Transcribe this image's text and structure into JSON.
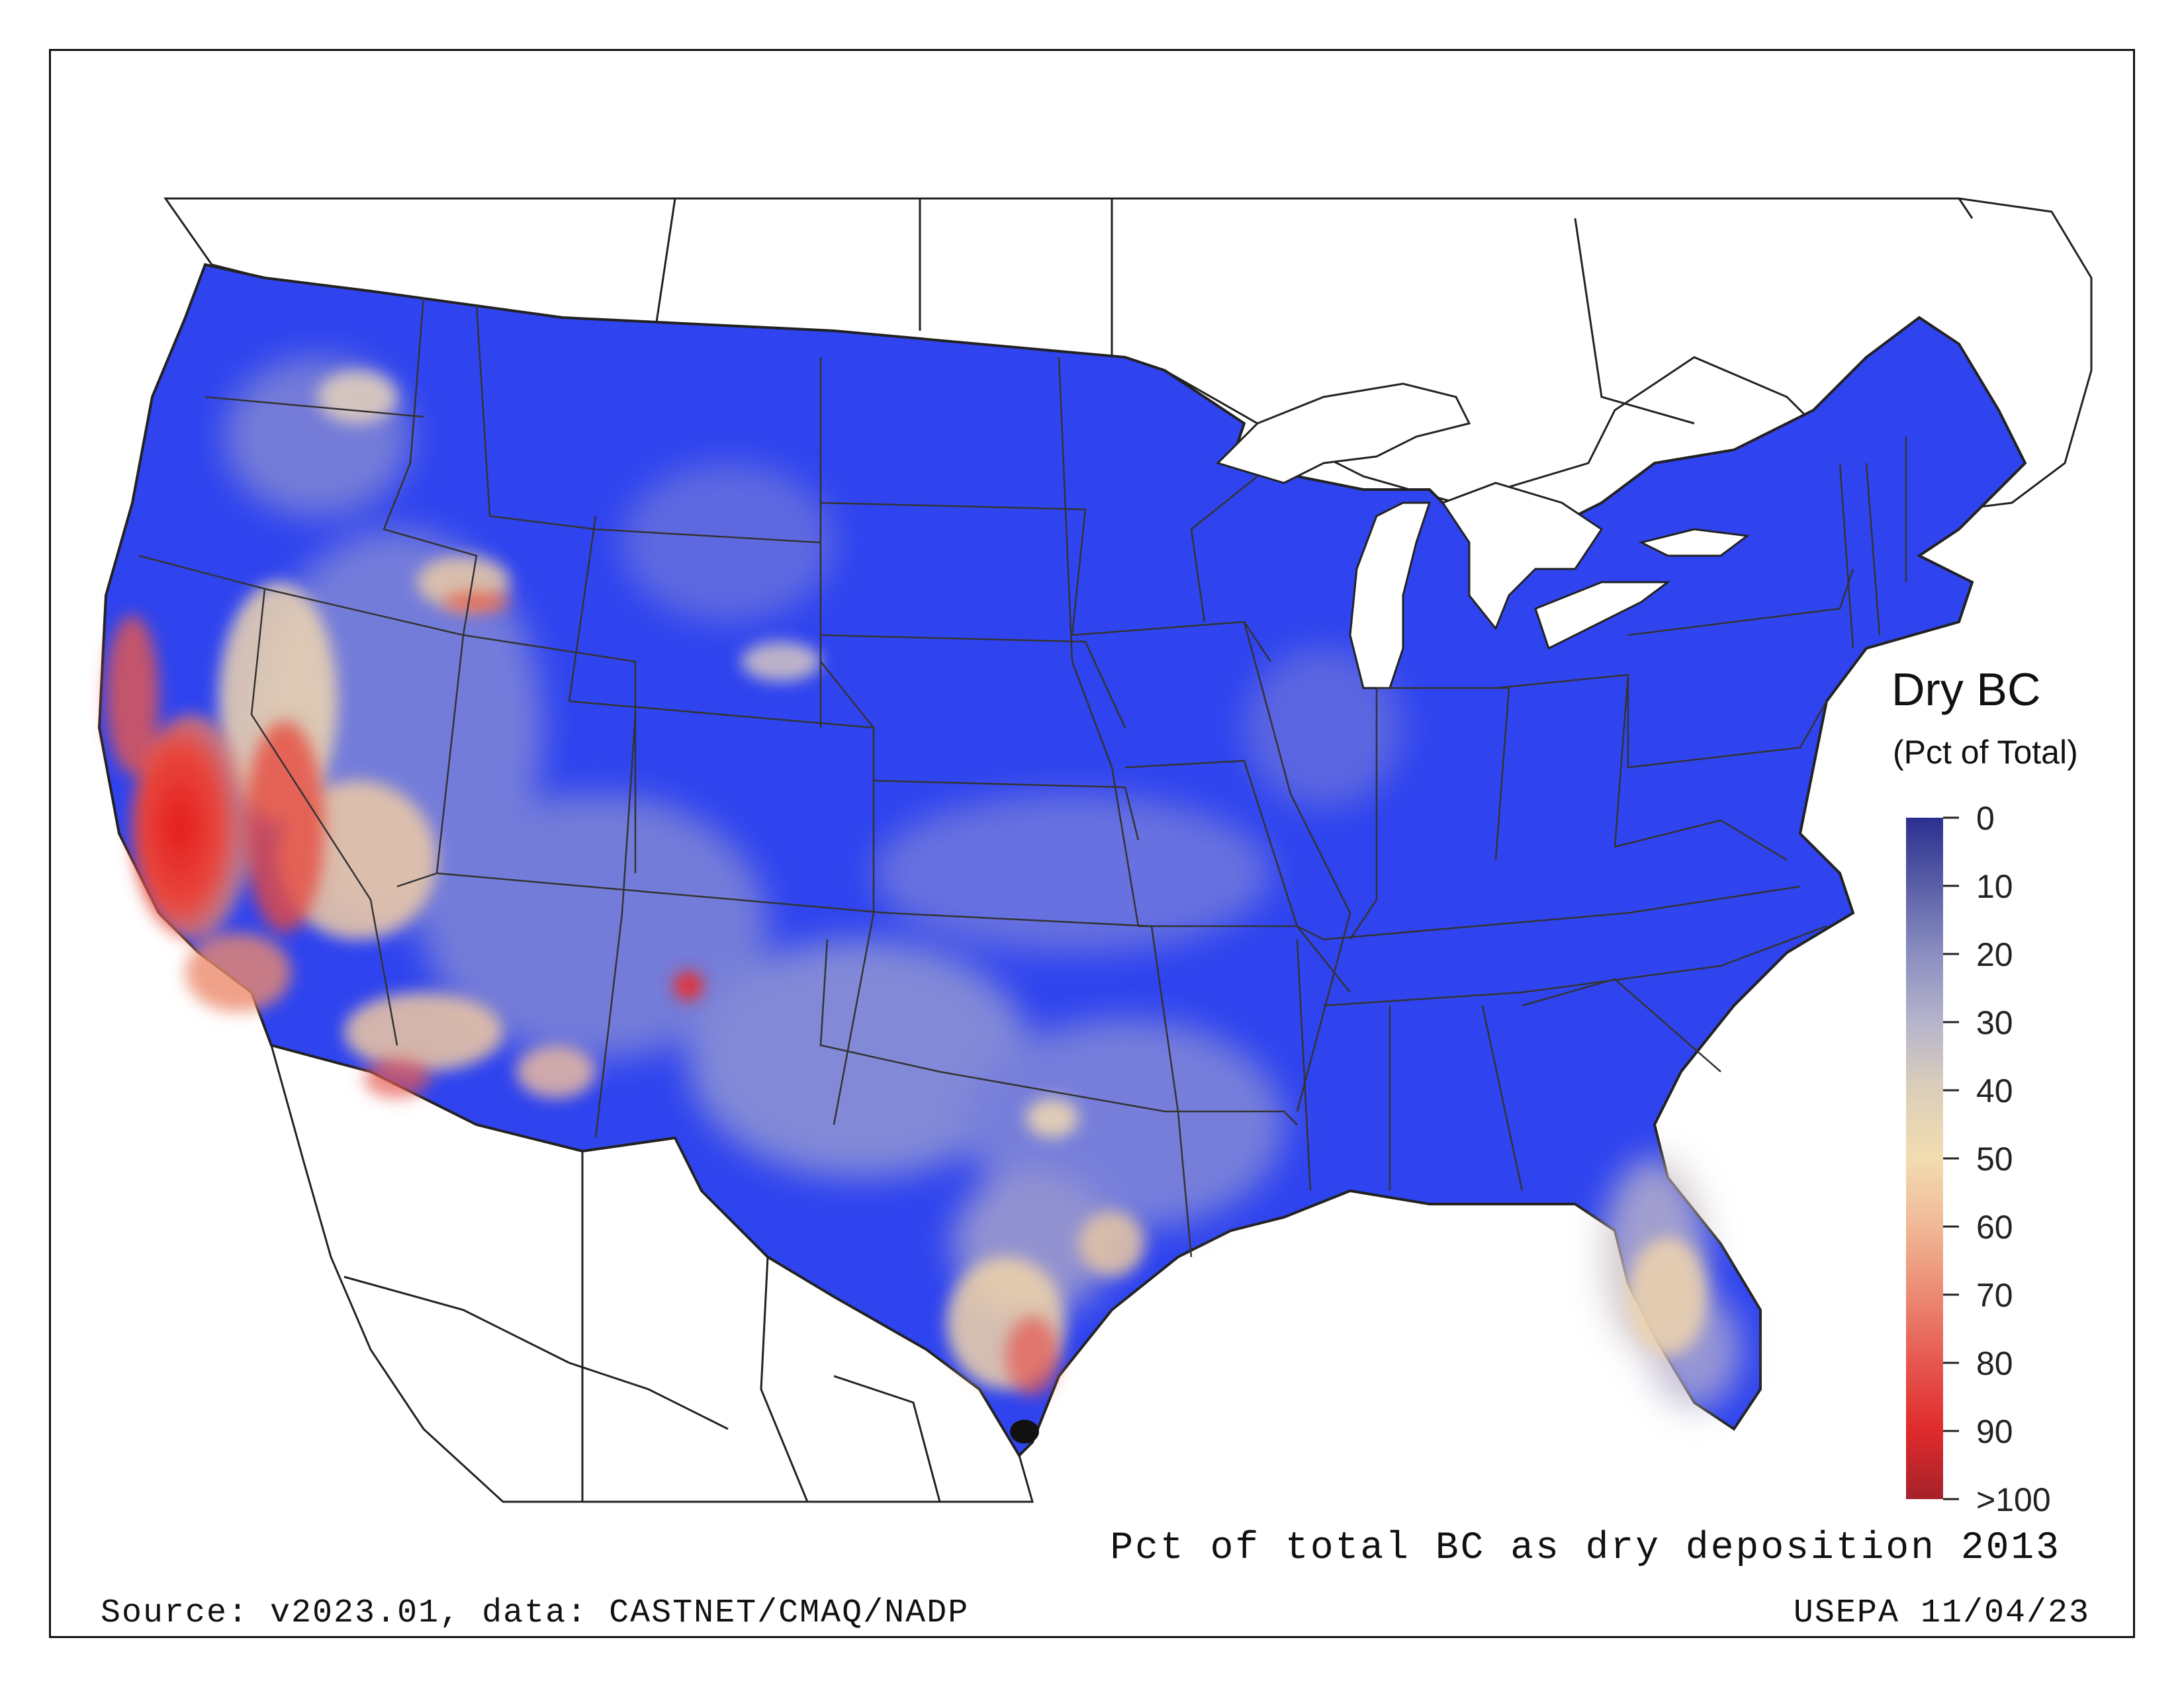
{
  "legend": {
    "title": "Dry BC",
    "subtitle": "(Pct of Total)",
    "ticks": [
      "0",
      "10",
      "20",
      "30",
      "40",
      "50",
      "60",
      "70",
      "80",
      "90",
      ">100"
    ],
    "colors": [
      "#2b2f8f",
      "#5b5fa8",
      "#8a8ec0",
      "#b6b4cc",
      "#dccfb9",
      "#f2ddb0",
      "#f0b896",
      "#ec8a73",
      "#e6574f",
      "#e02a2c",
      "#a5222a"
    ]
  },
  "caption": "Pct of total BC as dry deposition 2013",
  "source": "Source: v2023.01, data: CASTNET/CMAQ/NADP",
  "credit": "USEPA 11/04/23",
  "map_colors": {
    "dominant_low": "#2a3cf0",
    "mid": "#8c92d6",
    "high": "#f0d7a8",
    "very_high": "#e62a2a"
  }
}
